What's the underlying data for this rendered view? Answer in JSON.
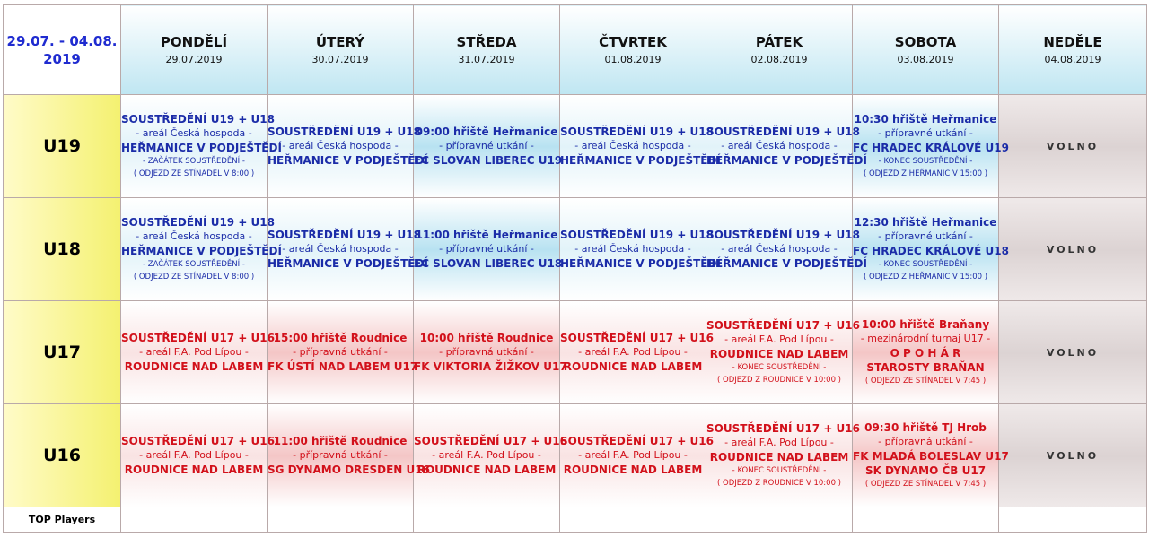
{
  "header": {
    "week": [
      "29.07. - 04.08.",
      "2019"
    ],
    "days": [
      {
        "name": "PONDĚLÍ",
        "date": "29.07.2019"
      },
      {
        "name": "ÚTERÝ",
        "date": "30.07.2019"
      },
      {
        "name": "STŘEDA",
        "date": "31.07.2019"
      },
      {
        "name": "ČTVRTEK",
        "date": "01.08.2019"
      },
      {
        "name": "PÁTEK",
        "date": "02.08.2019"
      },
      {
        "name": "SOBOTA",
        "date": "03.08.2019"
      },
      {
        "name": "NEDĚLE",
        "date": "04.08.2019"
      }
    ]
  },
  "rows": [
    {
      "team": "U19",
      "cells": [
        [
          "SOUSTŘEDĚNÍ U19 + U18",
          "- areál Česká hospoda -",
          "HEŘMANICE V PODJEŠTĚDÍ",
          "- ZAČÁTEK SOUSTŘEDĚNÍ -",
          "( ODJEZD ZE STÍNADEL V 8:00 )"
        ],
        [
          "SOUSTŘEDĚNÍ U19 + U18",
          "- areál Česká hospoda -",
          "HEŘMANICE V PODJEŠTĚDÍ"
        ],
        [
          "09:00 hřiště Heřmanice",
          "- přípravné utkání -",
          "FC SLOVAN LIBEREC U19"
        ],
        [
          "SOUSTŘEDĚNÍ U19 + U18",
          "- areál Česká hospoda -",
          "HEŘMANICE V PODJEŠTĚDÍ"
        ],
        [
          "SOUSTŘEDĚNÍ U19 + U18",
          "- areál Česká hospoda -",
          "HEŘMANICE V PODJEŠTĚDÍ"
        ],
        [
          "10:30 hřiště Heřmanice",
          "- přípravné utkání -",
          "FC HRADEC KRÁLOVÉ U19",
          "- KONEC SOUSTŘEDĚNÍ -",
          "( ODJEZD Z HEŘMANIC V 15:00 )"
        ],
        [
          "VOLNO"
        ]
      ]
    },
    {
      "team": "U18",
      "cells": [
        [
          "SOUSTŘEDĚNÍ U19 + U18",
          "- areál Česká hospoda -",
          "HEŘMANICE V PODJEŠTĚDÍ",
          "- ZAČÁTEK SOUSTŘEDĚNÍ -",
          "( ODJEZD ZE STÍNADEL V 8:00 )"
        ],
        [
          "SOUSTŘEDĚNÍ U19 + U18",
          "- areál Česká hospoda -",
          "HEŘMANICE V PODJEŠTĚDÍ"
        ],
        [
          "11:00 hřiště Heřmanice",
          "- přípravné utkání -",
          "FC SLOVAN LIBEREC U18"
        ],
        [
          "SOUSTŘEDĚNÍ U19 + U18",
          "- areál Česká hospoda -",
          "HEŘMANICE V PODJEŠTĚDÍ"
        ],
        [
          "SOUSTŘEDĚNÍ U19 + U18",
          "- areál Česká hospoda -",
          "HEŘMANICE V PODJEŠTĚDÍ"
        ],
        [
          "12:30 hřiště Heřmanice",
          "- přípravné utkání -",
          "FC HRADEC KRÁLOVÉ U18",
          "- KONEC SOUSTŘEDĚNÍ -",
          "( ODJEZD Z HEŘMANIC V 15:00 )"
        ],
        [
          "VOLNO"
        ]
      ]
    },
    {
      "team": "U17",
      "cells": [
        [
          "SOUSTŘEDĚNÍ U17 + U16",
          "- areál F.A. Pod Lípou -",
          "ROUDNICE NAD LABEM"
        ],
        [
          "15:00 hřiště Roudnice",
          "- přípravná utkání -",
          "FK ÚSTÍ NAD LABEM U17"
        ],
        [
          "10:00 hřiště Roudnice",
          "- přípravná utkání -",
          "FK VIKTORIA ŽIŽKOV U17"
        ],
        [
          "SOUSTŘEDĚNÍ U17 + U16",
          "- areál F.A. Pod Lípou -",
          "ROUDNICE NAD LABEM"
        ],
        [
          "SOUSTŘEDĚNÍ U17 + U16",
          "- areál F.A. Pod Lípou -",
          "ROUDNICE NAD LABEM",
          "- KONEC SOUSTŘEDĚNÍ -",
          "( ODJEZD Z ROUDNICE V 10:00 )"
        ],
        [
          "10:00 hřiště Braňany",
          "- mezinárodní turnaj U17 -",
          "O P O H Á R",
          "STAROSTY BRAŇAN",
          "( ODJEZD ZE STÍNADEL V 7:45 )"
        ],
        [
          "VOLNO"
        ]
      ]
    },
    {
      "team": "U16",
      "cells": [
        [
          "SOUSTŘEDĚNÍ U17 + U16",
          "- areál F.A. Pod Lípou -",
          "ROUDNICE NAD LABEM"
        ],
        [
          "11:00 hřiště Roudnice",
          "- přípravná utkání -",
          "SG DYNAMO DRESDEN U16"
        ],
        [
          "SOUSTŘEDĚNÍ U17 + U16",
          "- areál F.A. Pod Lípou -",
          "ROUDNICE NAD LABEM"
        ],
        [
          "SOUSTŘEDĚNÍ U17 + U16",
          "- areál F.A. Pod Lípou -",
          "ROUDNICE NAD LABEM"
        ],
        [
          "SOUSTŘEDĚNÍ U17 + U16",
          "- areál F.A. Pod Lípou -",
          "ROUDNICE NAD LABEM",
          "- KONEC SOUSTŘEDĚNÍ -",
          "( ODJEZD Z ROUDNICE V 10:00 )"
        ],
        [
          "09:30 hřiště TJ Hrob",
          "- přípravná utkání -",
          "FK MLADÁ BOLESLAV U17",
          "SK DYNAMO ČB U17",
          "( ODJEZD ZE STÍNADEL V 7:45 )"
        ],
        [
          "VOLNO"
        ]
      ]
    }
  ],
  "footer": {
    "label": "TOP Players"
  }
}
